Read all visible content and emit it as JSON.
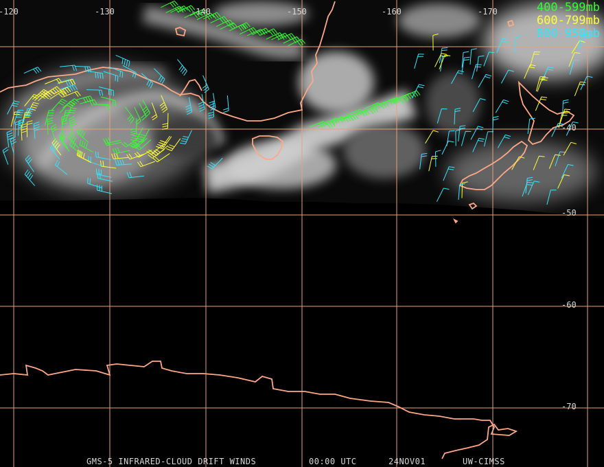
{
  "map": {
    "longitude_labels": [
      "-120",
      "-130",
      "-140",
      "-150",
      "-160",
      "-170"
    ],
    "latitude_labels": [
      "-40",
      "-50",
      "-60",
      "-70"
    ],
    "graticule_color": "#e8a27a",
    "coastline_color": "#ffa888",
    "land_features": [
      "australia-south-coast",
      "tasmania",
      "new-zealand",
      "antarctica-coast"
    ],
    "cloud_systems": [
      "low-pressure-spiral-west",
      "cloud-band-tasman-sea",
      "cloud-mass-northeast"
    ],
    "imagery_coverage_note": "satellite imagery ends near -50 latitude; black below"
  },
  "legend": [
    {
      "label": "400-599mb",
      "color": "#33ff33"
    },
    {
      "label": "600-799mb",
      "color": "#ffff33"
    },
    {
      "label": "800-950mb",
      "color": "#33e6ff"
    }
  ],
  "footer": {
    "product": "GMS-5 INFRARED-CLOUD DRIFT WINDS",
    "time": "00:00 UTC",
    "date": "24NOV01",
    "source": "UW-CIMSS"
  }
}
